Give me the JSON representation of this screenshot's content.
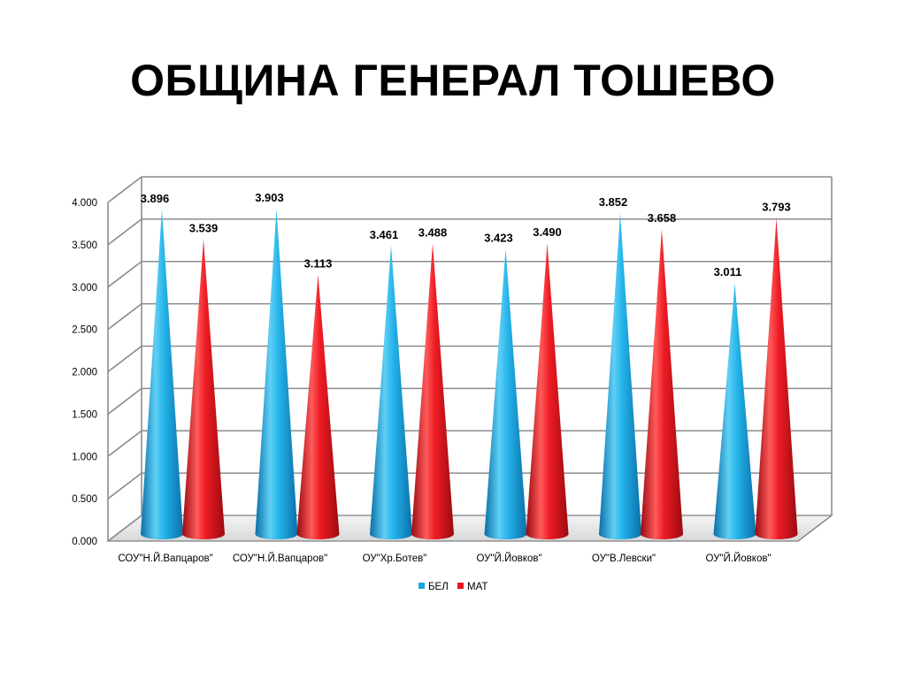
{
  "slide": {
    "title": "ОБЩИНА ГЕНЕРАЛ ТОШЕВО"
  },
  "chart_data": {
    "type": "bar",
    "style": "3d-cone",
    "categories": [
      "СОУ\"Н.Й.Вапцаров\"",
      "СОУ\"Н.Й.Вапцаров\"",
      "ОУ\"Хр.Ботев\"",
      "ОУ\"Й.Йовков\"",
      "ОУ\"В.Левски\"",
      "ОУ\"Й.Йовков\""
    ],
    "series": [
      {
        "name": "БЕЛ",
        "color": "#1BA6E0",
        "values": [
          3.896,
          3.903,
          3.461,
          3.423,
          3.852,
          3.011
        ],
        "labels": [
          "3.896",
          "3.903",
          "3.461",
          "3.423",
          "3.852",
          "3.011"
        ]
      },
      {
        "name": "МАТ",
        "color": "#E8141B",
        "values": [
          3.539,
          3.113,
          3.488,
          3.49,
          3.658,
          3.793
        ],
        "labels": [
          "3.539",
          "3.113",
          "3.488",
          "3.490",
          "3.658",
          "3.793"
        ]
      }
    ],
    "yticks": [
      "0.000",
      "0.500",
      "1.000",
      "1.500",
      "2.000",
      "2.500",
      "3.000",
      "3.500",
      "4.000"
    ],
    "ylim": [
      0,
      4
    ],
    "grid": true,
    "legend_position": "bottom"
  }
}
